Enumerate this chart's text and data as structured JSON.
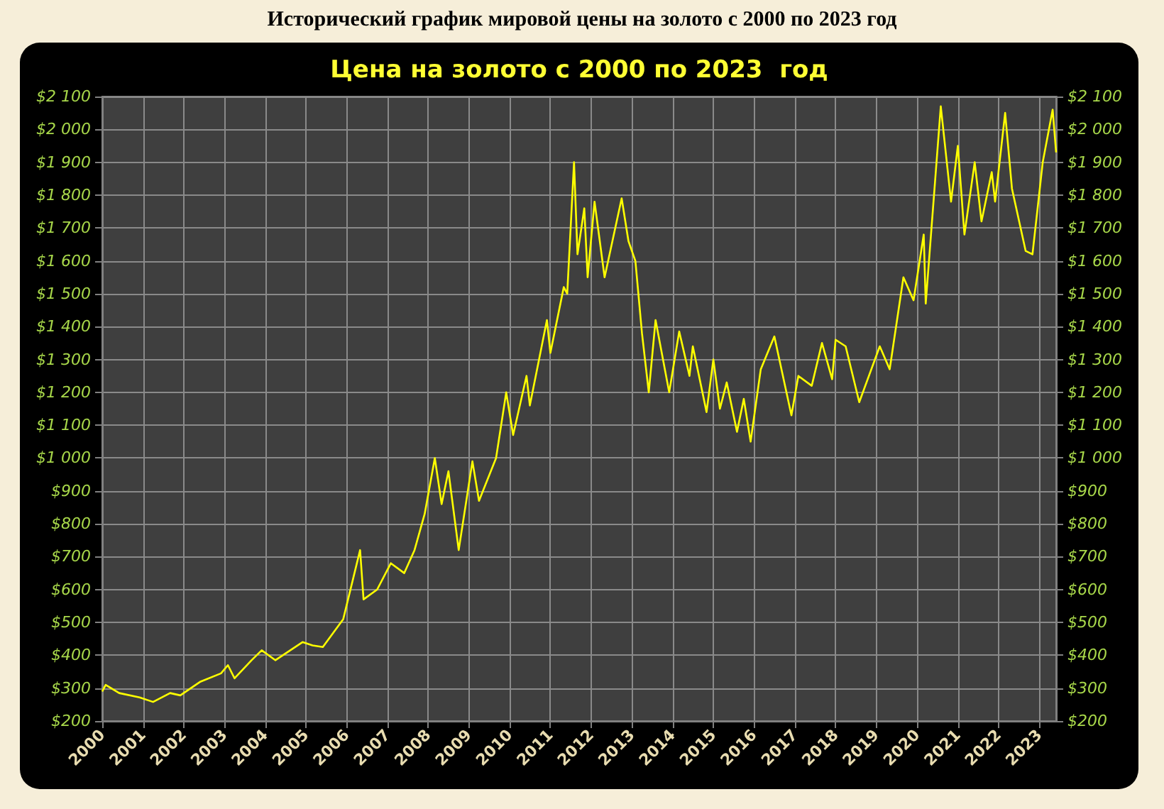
{
  "chart_data": {
    "type": "line",
    "title": "Исторический график мировой цены на золото с 2000 по 2023 год",
    "subtitle": "Цена на золото с 2000 по 2023  год",
    "x": [
      "2000-01",
      "2000-02",
      "2000-06",
      "2000-12",
      "2001-04",
      "2001-09",
      "2001-12",
      "2002-06",
      "2002-12",
      "2003-02",
      "2003-04",
      "2003-09",
      "2003-12",
      "2004-04",
      "2004-12",
      "2005-03",
      "2005-06",
      "2005-12",
      "2006-05",
      "2006-06",
      "2006-10",
      "2007-02",
      "2007-06",
      "2007-09",
      "2007-12",
      "2008-03",
      "2008-05",
      "2008-07",
      "2008-10",
      "2009-02",
      "2009-04",
      "2009-09",
      "2009-12",
      "2010-02",
      "2010-06",
      "2010-07",
      "2010-12",
      "2011-01",
      "2011-05",
      "2011-06",
      "2011-08",
      "2011-09",
      "2011-11",
      "2011-12",
      "2012-02",
      "2012-05",
      "2012-10",
      "2012-12",
      "2013-02",
      "2013-04",
      "2013-06",
      "2013-08",
      "2013-12",
      "2014-03",
      "2014-06",
      "2014-07",
      "2014-11",
      "2015-01",
      "2015-03",
      "2015-05",
      "2015-08",
      "2015-10",
      "2015-12",
      "2016-03",
      "2016-07",
      "2016-12",
      "2017-02",
      "2017-06",
      "2017-09",
      "2017-12",
      "2018-01",
      "2018-04",
      "2018-08",
      "2019-02",
      "2019-05",
      "2019-09",
      "2019-12",
      "2020-03",
      "2020-03-19",
      "2020-08",
      "2020-11",
      "2021-01",
      "2021-03",
      "2021-06",
      "2021-08",
      "2021-11",
      "2021-12",
      "2022-03",
      "2022-05",
      "2022-09",
      "2022-11",
      "2023-02",
      "2023-05",
      "2023-06"
    ],
    "series": [
      {
        "color": "#ffff00",
        "values": [
          290,
          310,
          285,
          272,
          258,
          285,
          278,
          320,
          345,
          370,
          330,
          385,
          415,
          385,
          440,
          430,
          425,
          510,
          720,
          570,
          600,
          680,
          650,
          720,
          830,
          1000,
          860,
          960,
          720,
          990,
          870,
          1000,
          1200,
          1070,
          1250,
          1160,
          1420,
          1320,
          1520,
          1500,
          1900,
          1620,
          1760,
          1550,
          1780,
          1550,
          1790,
          1660,
          1600,
          1380,
          1200,
          1420,
          1200,
          1385,
          1250,
          1340,
          1140,
          1300,
          1150,
          1230,
          1080,
          1180,
          1050,
          1270,
          1370,
          1130,
          1250,
          1220,
          1350,
          1240,
          1360,
          1340,
          1170,
          1340,
          1270,
          1550,
          1480,
          1680,
          1470,
          2070,
          1780,
          1950,
          1680,
          1900,
          1720,
          1870,
          1780,
          2050,
          1820,
          1630,
          1620,
          1900,
          2060,
          1930
        ]
      }
    ],
    "xlim": [
      "2000-01",
      "2023-06"
    ],
    "xticks": [
      "2000",
      "2001",
      "2002",
      "2003",
      "2004",
      "2005",
      "2006",
      "2007",
      "2008",
      "2009",
      "2010",
      "2011",
      "2012",
      "2013",
      "2014",
      "2015",
      "2016",
      "2017",
      "2018",
      "2019",
      "2020",
      "2021",
      "2022",
      "2023"
    ],
    "ylim": [
      200,
      2100
    ],
    "yticks": [
      {
        "value": 200,
        "label": "$200"
      },
      {
        "value": 300,
        "label": "$300"
      },
      {
        "value": 400,
        "label": "$400"
      },
      {
        "value": 500,
        "label": "$500"
      },
      {
        "value": 600,
        "label": "$600"
      },
      {
        "value": 700,
        "label": "$700"
      },
      {
        "value": 800,
        "label": "$800"
      },
      {
        "value": 900,
        "label": "$900"
      },
      {
        "value": 1000,
        "label": "$1 000"
      },
      {
        "value": 1100,
        "label": "$1 100"
      },
      {
        "value": 1200,
        "label": "$1 200"
      },
      {
        "value": 1300,
        "label": "$1 300"
      },
      {
        "value": 1400,
        "label": "$1 400"
      },
      {
        "value": 1500,
        "label": "$1 500"
      },
      {
        "value": 1600,
        "label": "$1 600"
      },
      {
        "value": 1700,
        "label": "$1 700"
      },
      {
        "value": 1800,
        "label": "$1 800"
      },
      {
        "value": 1900,
        "label": "$1 900"
      },
      {
        "value": 2000,
        "label": "$2 000"
      },
      {
        "value": 2100,
        "label": "$2 100"
      }
    ],
    "y2lim": [
      200,
      2100
    ],
    "y2ticks": [
      {
        "value": 200,
        "label": "$200"
      },
      {
        "value": 300,
        "label": "$300"
      },
      {
        "value": 400,
        "label": "$400"
      },
      {
        "value": 500,
        "label": "$500"
      },
      {
        "value": 600,
        "label": "$600"
      },
      {
        "value": 700,
        "label": "$700"
      },
      {
        "value": 800,
        "label": "$800"
      },
      {
        "value": 900,
        "label": "$900"
      },
      {
        "value": 1000,
        "label": "$1 000"
      },
      {
        "value": 1100,
        "label": "$1 100"
      },
      {
        "value": 1200,
        "label": "$1 200"
      },
      {
        "value": 1300,
        "label": "$1 300"
      },
      {
        "value": 1400,
        "label": "$1 400"
      },
      {
        "value": 1500,
        "label": "$1 500"
      },
      {
        "value": 1600,
        "label": "$1 600"
      },
      {
        "value": 1700,
        "label": "$1 700"
      },
      {
        "value": 1800,
        "label": "$1 800"
      },
      {
        "value": 1900,
        "label": "$1 900"
      },
      {
        "value": 2000,
        "label": "$2 000"
      },
      {
        "value": 2100,
        "label": "$2 100"
      }
    ],
    "grid": true,
    "marker": "none",
    "line_style": "solid"
  }
}
